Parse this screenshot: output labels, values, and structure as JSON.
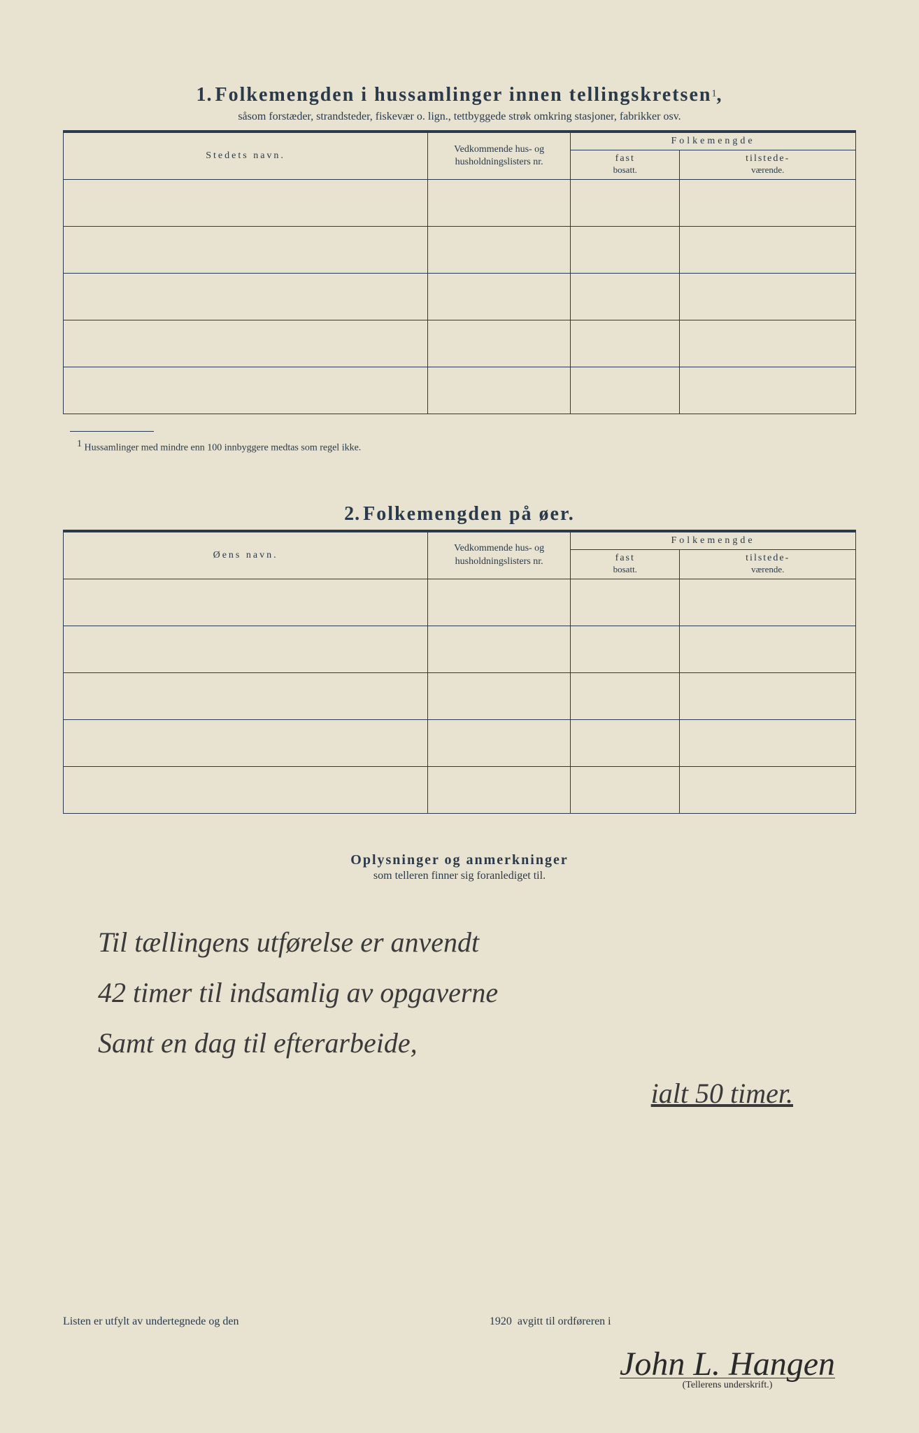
{
  "section1": {
    "number": "1.",
    "title": "Folkemengden i hussamlinger innen tellingskretsen",
    "title_sup": "1",
    "subtitle": "såsom forstæder, strandsteder, fiskevær o. lign., tettbyggede strøk omkring stasjoner, fabrikker osv.",
    "col_name": "Stedets navn.",
    "col_hus": "Vedkommende hus- og husholdningslisters nr.",
    "col_folk": "Folkemengde",
    "col_fast": "fast",
    "col_fast_sub": "bosatt.",
    "col_til": "tilstede-",
    "col_til_sub": "værende.",
    "footnote_marker": "1",
    "footnote": "Hussamlinger med mindre enn 100 innbyggere medtas som regel ikke."
  },
  "section2": {
    "number": "2.",
    "title": "Folkemengden på øer.",
    "col_name": "Øens navn.",
    "col_hus": "Vedkommende hus- og husholdningslisters nr.",
    "col_folk": "Folkemengde",
    "col_fast": "fast",
    "col_fast_sub": "bosatt.",
    "col_til": "tilstede-",
    "col_til_sub": "værende."
  },
  "oplysninger": {
    "title": "Oplysninger og anmerkninger",
    "subtitle": "som telleren finner sig foranlediget til."
  },
  "handwriting": {
    "line1": "Til tællingens utførelse er anvendt",
    "line2": "42 timer til indsamlig av opgaverne",
    "line3": "Samt en dag til efterarbeide,",
    "line4": "ialt 50 timer."
  },
  "bottom": {
    "prefix": "Listen er utfylt av undertegnede og den",
    "year": "1920",
    "suffix": "avgitt til ordføreren i"
  },
  "signature": {
    "name": "John L. Hangen",
    "label": "(Tellerens underskrift.)"
  }
}
